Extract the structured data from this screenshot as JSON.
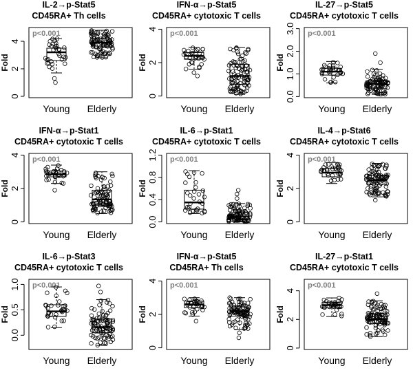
{
  "chart_data": [
    {
      "type": "boxplot",
      "title_line1": "IL-2→p-Stat5",
      "title_line2": "CD45RA+ Th cells",
      "ylabel": "Fold",
      "annotation": "p<0.001",
      "categories": [
        "Young",
        "Elderly"
      ],
      "yticks": [
        "0",
        "2",
        "4"
      ],
      "ytick_values": [
        0,
        2,
        4
      ],
      "ylim": [
        -0.1,
        5.0
      ],
      "series": [
        {
          "category": "Young",
          "whisker_low": 1.7,
          "q1": 2.6,
          "median": 3.2,
          "q3": 3.5,
          "whisker_high": 4.2,
          "outliers": [
            1.0,
            1.3
          ]
        },
        {
          "category": "Elderly",
          "whisker_low": 2.8,
          "q1": 3.6,
          "median": 3.9,
          "q3": 4.2,
          "whisker_high": 4.8,
          "outliers": []
        }
      ]
    },
    {
      "type": "boxplot",
      "title_line1": "IFN-α→p-Stat5",
      "title_line2": "CD45RA+ cytotoxic T cells",
      "ylabel": "Fold",
      "annotation": "p<0.001",
      "categories": [
        "Young",
        "Elderly"
      ],
      "yticks": [
        "0",
        "2",
        "4"
      ],
      "ytick_values": [
        0,
        2,
        4
      ],
      "ylim": [
        -0.1,
        4.1
      ],
      "series": [
        {
          "category": "Young",
          "whisker_low": 1.6,
          "q1": 2.2,
          "median": 2.4,
          "q3": 2.6,
          "whisker_high": 2.9,
          "outliers": [
            1.2,
            1.4
          ]
        },
        {
          "category": "Elderly",
          "whisker_low": 0.1,
          "q1": 0.7,
          "median": 1.2,
          "q3": 1.9,
          "whisker_high": 2.9,
          "outliers": []
        }
      ]
    },
    {
      "type": "boxplot",
      "title_line1": "IL-27→p-Stat5",
      "title_line2": "CD45RA+ cytotoxic T cells",
      "ylabel": "Fold",
      "annotation": "p<0.001",
      "categories": [
        "Young",
        "Elderly"
      ],
      "yticks": [
        "0.0",
        "1.0",
        "2.0",
        "3.0"
      ],
      "ytick_values": [
        0,
        1,
        2,
        3
      ],
      "ylim": [
        -0.05,
        3.05
      ],
      "series": [
        {
          "category": "Young",
          "whisker_low": 0.6,
          "q1": 0.95,
          "median": 1.1,
          "q3": 1.25,
          "whisker_high": 1.55,
          "outliers": []
        },
        {
          "category": "Elderly",
          "whisker_low": 0.1,
          "q1": 0.35,
          "median": 0.55,
          "q3": 0.7,
          "whisker_high": 1.2,
          "outliers": [
            1.5,
            1.9
          ]
        }
      ]
    },
    {
      "type": "boxplot",
      "title_line1": "IFN-α→p-Stat1",
      "title_line2": "CD45RA+ cytotoxic T cells",
      "ylabel": "Fold",
      "annotation": "p<0.001",
      "categories": [
        "Young",
        "Elderly"
      ],
      "yticks": [
        "0",
        "2",
        "4"
      ],
      "ytick_values": [
        0,
        2,
        4
      ],
      "ylim": [
        -0.1,
        4.1
      ],
      "series": [
        {
          "category": "Young",
          "whisker_low": 2.3,
          "q1": 2.7,
          "median": 2.85,
          "q3": 3.05,
          "whisker_high": 3.4,
          "outliers": [
            1.9
          ]
        },
        {
          "category": "Elderly",
          "whisker_low": 0.5,
          "q1": 1.0,
          "median": 1.35,
          "q3": 1.9,
          "whisker_high": 3.0,
          "outliers": []
        }
      ]
    },
    {
      "type": "boxplot",
      "title_line1": "IL-6→p-Stat1",
      "title_line2": "CD45RA+ cytotoxic T cells",
      "ylabel": "Fold",
      "annotation": "p<0.001",
      "categories": [
        "Young",
        "Elderly"
      ],
      "yticks": [
        "0.0",
        "0.4",
        "0.8",
        "1.2"
      ],
      "ytick_values": [
        0,
        0.4,
        0.8,
        1.2
      ],
      "ylim": [
        -0.03,
        1.23
      ],
      "series": [
        {
          "category": "Young",
          "whisker_low": 0.15,
          "q1": 0.23,
          "median": 0.35,
          "q3": 0.57,
          "whisker_high": 0.92,
          "outliers": []
        },
        {
          "category": "Elderly",
          "whisker_low": 0.0,
          "q1": 0.05,
          "median": 0.1,
          "q3": 0.17,
          "whisker_high": 0.33,
          "outliers": [
            0.42,
            0.5,
            0.57
          ]
        }
      ]
    },
    {
      "type": "boxplot",
      "title_line1": "IL-4→p-Stat6",
      "title_line2": "CD45RA+ cytotoxic T cells",
      "ylabel": "Fold",
      "annotation": "p<0.001",
      "categories": [
        "Young",
        "Elderly"
      ],
      "yticks": [
        "0",
        "2",
        "4"
      ],
      "ytick_values": [
        0,
        2,
        4
      ],
      "ylim": [
        -0.1,
        4.1
      ],
      "series": [
        {
          "category": "Young",
          "whisker_low": 2.3,
          "q1": 2.7,
          "median": 2.95,
          "q3": 3.2,
          "whisker_high": 3.55,
          "outliers": []
        },
        {
          "category": "Elderly",
          "whisker_low": 1.5,
          "q1": 2.25,
          "median": 2.5,
          "q3": 2.8,
          "whisker_high": 3.5,
          "outliers": [
            1.3
          ]
        }
      ]
    },
    {
      "type": "boxplot",
      "title_line1": "IL-6→p-Stat3",
      "title_line2": "CD45RA+ cytotoxic T cells",
      "ylabel": "Fold",
      "annotation": "p<0.001",
      "categories": [
        "Young",
        "Elderly"
      ],
      "yticks": [
        "0.0",
        "0.5",
        "1.0"
      ],
      "ytick_values": [
        0,
        0.5,
        1.0
      ],
      "ylim": [
        -0.28,
        1.1
      ],
      "series": [
        {
          "category": "Young",
          "whisker_low": 0.15,
          "q1": 0.37,
          "median": 0.47,
          "q3": 0.6,
          "whisker_high": 0.95,
          "outliers": []
        },
        {
          "category": "Elderly",
          "whisker_low": -0.2,
          "q1": 0.05,
          "median": 0.16,
          "q3": 0.32,
          "whisker_high": 0.7,
          "outliers": [
            0.85,
            0.97
          ]
        }
      ]
    },
    {
      "type": "boxplot",
      "title_line1": "IFN-α→p-Stat5",
      "title_line2": "CD45RA+ Th cells",
      "ylabel": "Fold",
      "annotation": "p<0.001",
      "categories": [
        "Young",
        "Elderly"
      ],
      "yticks": [
        "0",
        "2",
        "4"
      ],
      "ytick_values": [
        0,
        2,
        4
      ],
      "ylim": [
        -0.1,
        4.1
      ],
      "series": [
        {
          "category": "Young",
          "whisker_low": 1.9,
          "q1": 2.4,
          "median": 2.6,
          "q3": 2.8,
          "whisker_high": 3.0,
          "outliers": [
            1.6
          ]
        },
        {
          "category": "Elderly",
          "whisker_low": 1.1,
          "q1": 1.9,
          "median": 2.2,
          "q3": 2.45,
          "whisker_high": 3.0,
          "outliers": [
            0.6,
            0.9
          ]
        }
      ]
    },
    {
      "type": "boxplot",
      "title_line1": "IL-27→p-Stat1",
      "title_line2": "CD45RA+ cytotoxic T cells",
      "ylabel": "Fold",
      "annotation": "p<0.001",
      "categories": [
        "Young",
        "Elderly"
      ],
      "yticks": [
        "0",
        "2",
        "4"
      ],
      "ytick_values": [
        0,
        2,
        4
      ],
      "ylim": [
        -0.1,
        4.8
      ],
      "series": [
        {
          "category": "Young",
          "whisker_low": 2.2,
          "q1": 2.8,
          "median": 3.0,
          "q3": 3.2,
          "whisker_high": 3.5,
          "outliers": []
        },
        {
          "category": "Elderly",
          "whisker_low": 0.8,
          "q1": 1.7,
          "median": 2.0,
          "q3": 2.4,
          "whisker_high": 3.3,
          "outliers": [
            3.8
          ]
        }
      ]
    }
  ]
}
